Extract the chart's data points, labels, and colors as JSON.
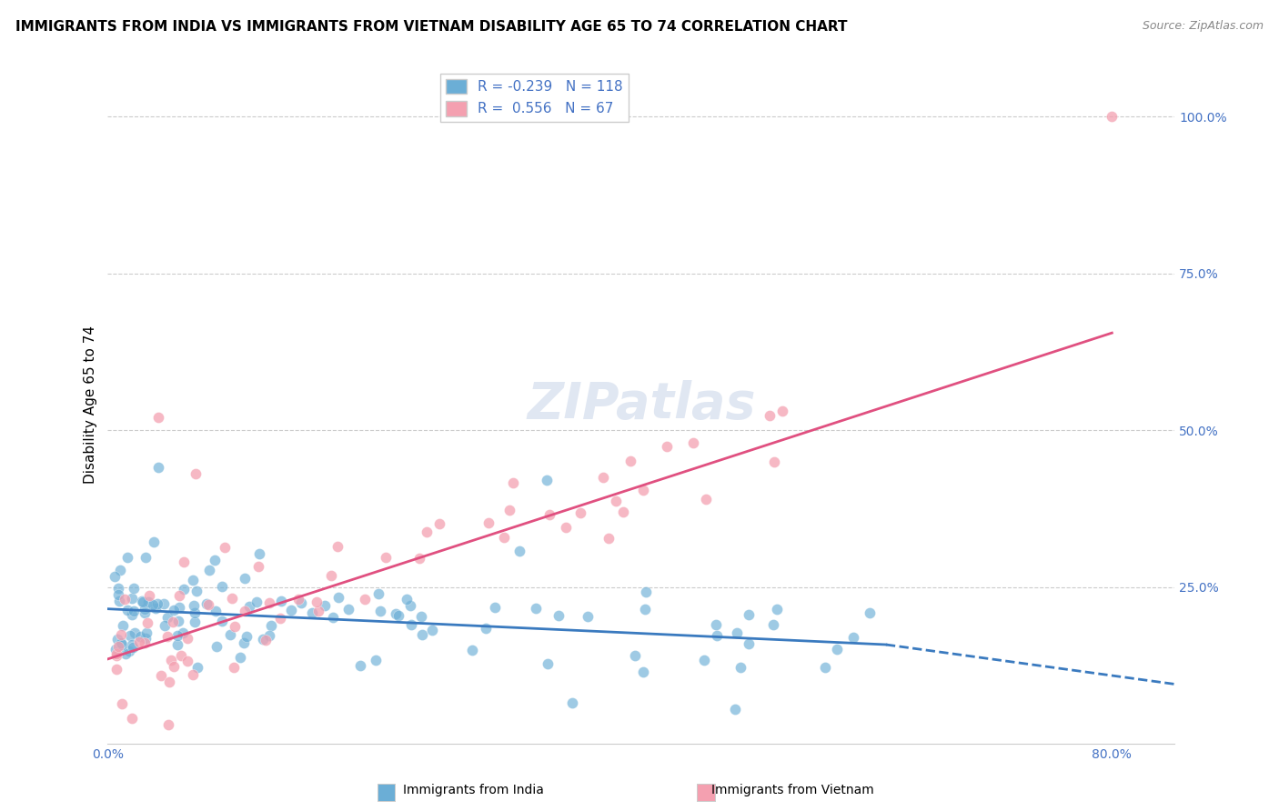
{
  "title": "IMMIGRANTS FROM INDIA VS IMMIGRANTS FROM VIETNAM DISABILITY AGE 65 TO 74 CORRELATION CHART",
  "source": "Source: ZipAtlas.com",
  "ylabel": "Disability Age 65 to 74",
  "xlim": [
    0.0,
    0.85
  ],
  "ylim": [
    0.0,
    1.08
  ],
  "india_color": "#6baed6",
  "vietnam_color": "#f4a0b0",
  "india_line_color": "#3a7abf",
  "vietnam_line_color": "#e05080",
  "R_india": -0.239,
  "N_india": 118,
  "R_vietnam": 0.556,
  "N_vietnam": 67,
  "watermark": "ZIPatlas",
  "india_trend_y_start": 0.215,
  "india_trend_y_end": 0.158,
  "india_trend_x_solid_end": 0.62,
  "india_trend_x_dash_end": 0.85,
  "india_trend_y_dash_end": 0.095,
  "vietnam_trend_y_start": 0.135,
  "vietnam_trend_y_end": 0.655,
  "vietnam_trend_x_end": 0.8,
  "grid_color": "#cccccc",
  "bg_color": "#ffffff",
  "title_fontsize": 11,
  "axis_label_fontsize": 11,
  "tick_fontsize": 10,
  "legend_fontsize": 11,
  "watermark_fontsize": 40,
  "watermark_color": "#c8d4e8",
  "watermark_alpha": 0.55
}
